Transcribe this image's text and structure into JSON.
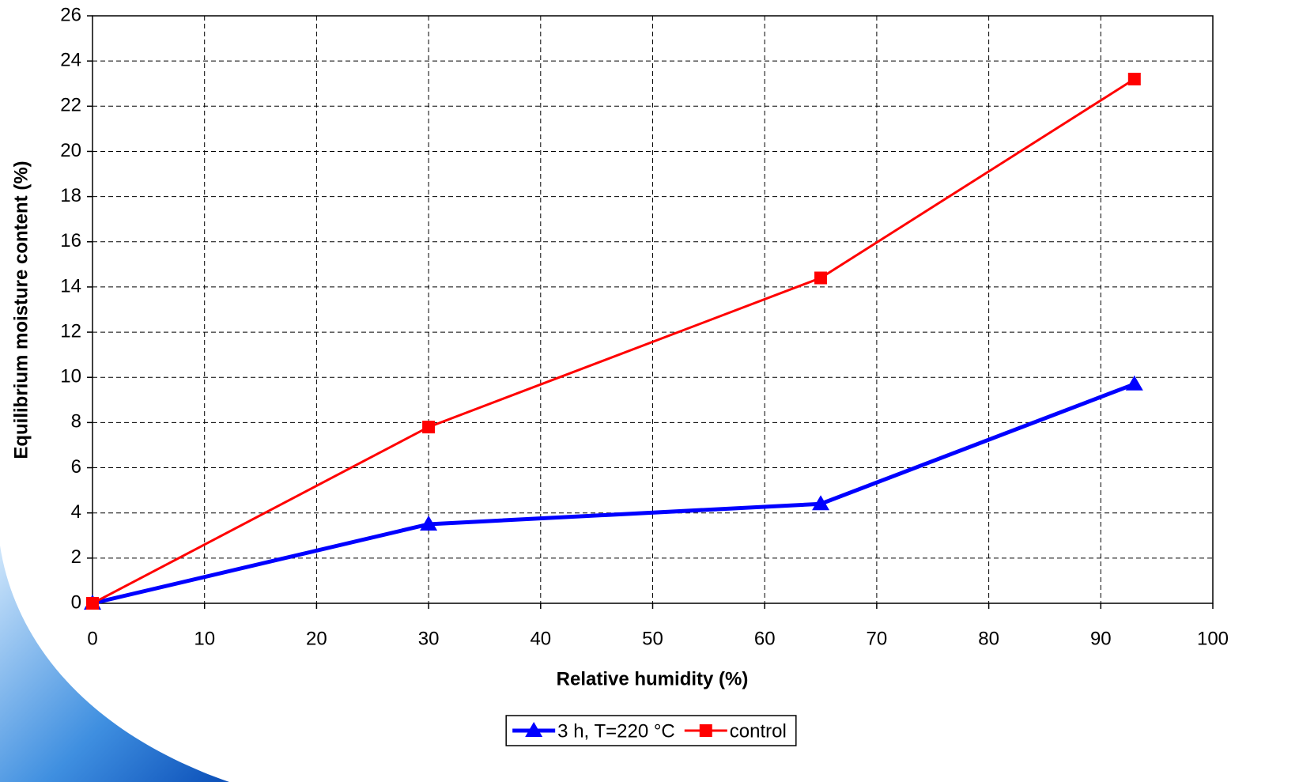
{
  "chart_data": {
    "type": "line",
    "x_label": "Relative humidity (%)",
    "y_label": "Equilibrium moisture content (%)",
    "x": [
      0,
      30,
      65,
      93
    ],
    "series": [
      {
        "name": "3 h, T=220 °C",
        "color": "#0000ff",
        "marker": "triangle",
        "values": [
          0,
          3.5,
          4.4,
          9.7
        ]
      },
      {
        "name": "control",
        "color": "#ff0000",
        "marker": "square",
        "values": [
          0,
          7.8,
          14.4,
          23.2
        ]
      }
    ],
    "xlim": [
      0,
      100
    ],
    "xticks": [
      0,
      10,
      20,
      30,
      40,
      50,
      60,
      70,
      80,
      90,
      100
    ],
    "ylim": [
      0,
      26
    ],
    "yticks": [
      0,
      2,
      4,
      6,
      8,
      10,
      12,
      14,
      16,
      18,
      20,
      22,
      24,
      26
    ],
    "grid": true,
    "legend": "bottom"
  }
}
